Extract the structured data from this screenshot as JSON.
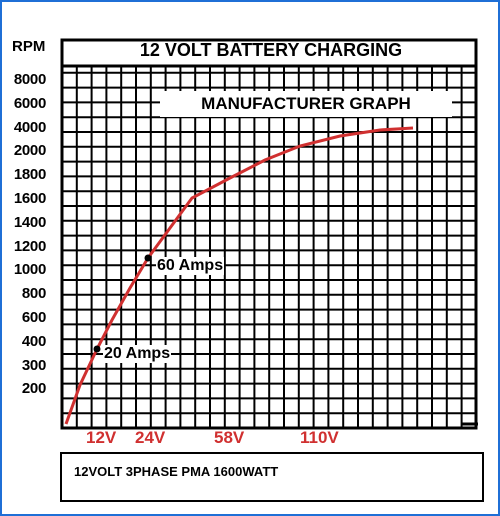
{
  "chart_data": {
    "type": "line",
    "title": "12 VOLT BATTERY CHARGING",
    "subtitle": "MANUFACTURER GRAPH",
    "ylabel": "RPM",
    "y_tick_labels": [
      "8000",
      "6000",
      "4000",
      "2000",
      "1800",
      "1600",
      "1400",
      "1200",
      "1000",
      "800",
      "600",
      "400",
      "300",
      "200"
    ],
    "x_tick_labels": [
      "12V",
      "24V",
      "58V",
      "110V"
    ],
    "series": [
      {
        "values_rpm_by_label": [
          {
            "x": "0",
            "y": 0
          },
          {
            "x": "12V",
            "y": 400
          },
          {
            "x": "24V",
            "y": 1000
          },
          {
            "x": "58V",
            "y": 1600
          },
          {
            "x": "110V",
            "y": 2000
          },
          {
            "x": "end",
            "y": 4000
          }
        ]
      }
    ],
    "annotations": [
      {
        "text": "60 Amps",
        "at_y": 1100
      },
      {
        "text": "20 Amps",
        "at_y": 400
      }
    ],
    "grid": true,
    "line_color": "#d03030"
  },
  "footer": {
    "text": "12VOLT 3PHASE PMA 1600WATT"
  }
}
